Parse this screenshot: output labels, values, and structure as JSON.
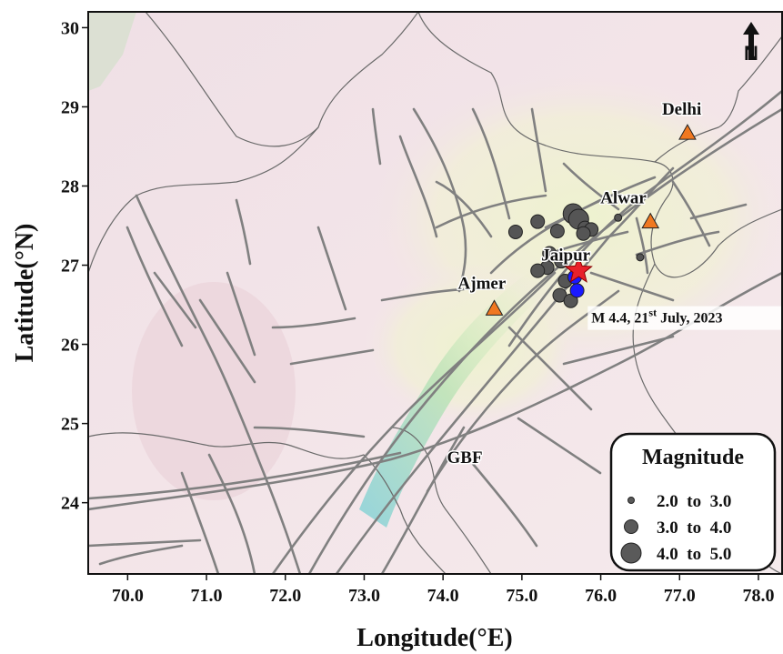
{
  "axes": {
    "x_title": "Longitude(°E)",
    "y_title": "Latitude(°N)",
    "x_range": [
      69.5,
      78.3
    ],
    "y_range": [
      23.1,
      30.2
    ],
    "x_ticks": [
      {
        "value": 70,
        "label": "70.0"
      },
      {
        "value": 71,
        "label": "71.0"
      },
      {
        "value": 72,
        "label": "72.0"
      },
      {
        "value": 73,
        "label": "73.0"
      },
      {
        "value": 74,
        "label": "74.0"
      },
      {
        "value": 75,
        "label": "75.0"
      },
      {
        "value": 76,
        "label": "76.0"
      },
      {
        "value": 77,
        "label": "77.0"
      },
      {
        "value": 78,
        "label": "78.0"
      }
    ],
    "y_ticks": [
      {
        "value": 24,
        "label": "24"
      },
      {
        "value": 25,
        "label": "25"
      },
      {
        "value": 26,
        "label": "26"
      },
      {
        "value": 27,
        "label": "27"
      },
      {
        "value": 28,
        "label": "28"
      },
      {
        "value": 29,
        "label": "29"
      },
      {
        "value": 30,
        "label": "30"
      }
    ]
  },
  "north_arrow": {
    "label": "N"
  },
  "cities": [
    {
      "name": "Delhi",
      "lon": 77.1,
      "lat": 28.67,
      "color": "#f07820"
    },
    {
      "name": "Alwar",
      "lon": 76.63,
      "lat": 27.55,
      "color": "#f07820"
    },
    {
      "name": "Jaipur",
      "lon": 75.8,
      "lat": 26.92,
      "color": "#f07820"
    },
    {
      "name": "Ajmer",
      "lon": 74.65,
      "lat": 26.45,
      "color": "#f07820"
    }
  ],
  "fault_label": {
    "text": "GBF",
    "lon": 74.05,
    "lat": 24.5
  },
  "mainshock": {
    "label_prefix": "M 4.4, 21",
    "label_sup": "st",
    "label_suffix": " July, 2023",
    "lon": 75.72,
    "lat": 26.93,
    "color": "#e8202a"
  },
  "events": [
    {
      "lon": 74.92,
      "lat": 27.42,
      "mag": 3.5
    },
    {
      "lon": 75.2,
      "lat": 27.55,
      "mag": 3.5
    },
    {
      "lon": 75.45,
      "lat": 27.43,
      "mag": 3.3
    },
    {
      "lon": 75.65,
      "lat": 27.65,
      "mag": 4.1
    },
    {
      "lon": 75.72,
      "lat": 27.58,
      "mag": 4.2
    },
    {
      "lon": 75.8,
      "lat": 27.47,
      "mag": 3.6
    },
    {
      "lon": 75.88,
      "lat": 27.45,
      "mag": 3.4
    },
    {
      "lon": 75.78,
      "lat": 27.4,
      "mag": 3.0
    },
    {
      "lon": 75.35,
      "lat": 27.15,
      "mag": 3.5
    },
    {
      "lon": 75.5,
      "lat": 27.05,
      "mag": 3.2
    },
    {
      "lon": 75.32,
      "lat": 26.97,
      "mag": 3.6
    },
    {
      "lon": 75.2,
      "lat": 26.93,
      "mag": 3.4
    },
    {
      "lon": 75.55,
      "lat": 26.8,
      "mag": 3.3
    },
    {
      "lon": 75.48,
      "lat": 26.62,
      "mag": 3.5
    },
    {
      "lon": 75.62,
      "lat": 26.55,
      "mag": 3.4
    },
    {
      "lon": 75.67,
      "lat": 26.85,
      "mag": 3.2,
      "color": "#1a1aff"
    },
    {
      "lon": 75.7,
      "lat": 26.68,
      "mag": 3.2,
      "color": "#1a1aff"
    },
    {
      "lon": 76.22,
      "lat": 27.6,
      "mag": 2.4
    },
    {
      "lon": 76.5,
      "lat": 27.1,
      "mag": 2.4
    }
  ],
  "legend": {
    "title": "Magnitude",
    "items": [
      {
        "label": "2.0  to  3.0",
        "size": 4
      },
      {
        "label": "3.0  to  4.0",
        "size": 7
      },
      {
        "label": "4.0  to  5.0",
        "size": 11
      }
    ]
  },
  "colors": {
    "event_fill": "#555555",
    "event_blue": "#1a1aff",
    "fault_line": "#808080",
    "border_line": "#6a6a6a"
  }
}
